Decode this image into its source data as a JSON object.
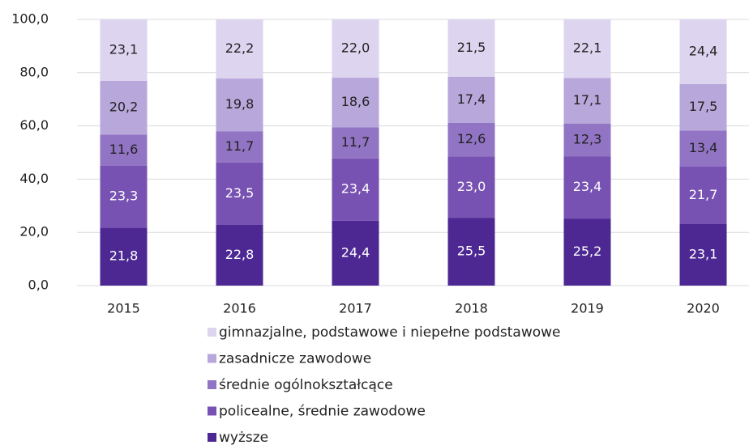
{
  "chart_data": {
    "type": "stacked_bar",
    "categories": [
      "2015",
      "2016",
      "2017",
      "2018",
      "2019",
      "2020"
    ],
    "ylim": [
      0,
      100
    ],
    "yticks": [
      {
        "value": 0,
        "label": "0,0"
      },
      {
        "value": 20,
        "label": "20,0"
      },
      {
        "value": 40,
        "label": "40,0"
      },
      {
        "value": 60,
        "label": "60,0"
      },
      {
        "value": 80,
        "label": "80,0"
      },
      {
        "value": 100,
        "label": "100,0"
      }
    ],
    "grid": true,
    "series": [
      {
        "name": "wyższe",
        "color": "#4d2893",
        "values": [
          21.8,
          22.8,
          24.4,
          25.5,
          25.2,
          23.1
        ],
        "value_labels": [
          "21,8",
          "22,8",
          "24,4",
          "25,5",
          "25,2",
          "23,1"
        ]
      },
      {
        "name": "policealne, średnie zawodowe",
        "color": "#7752b2",
        "values": [
          23.3,
          23.5,
          23.4,
          23.0,
          23.4,
          21.7
        ],
        "value_labels": [
          "23,3",
          "23,5",
          "23,4",
          "23,0",
          "23,4",
          "21,7"
        ]
      },
      {
        "name": "średnie ogólnokształcące",
        "color": "#9274c4",
        "values": [
          11.6,
          11.7,
          11.7,
          12.6,
          12.3,
          13.4
        ],
        "value_labels": [
          "11,6",
          "11,7",
          "11,7",
          "12,6",
          "12,3",
          "13,4"
        ]
      },
      {
        "name": "zasadnicze zawodowe",
        "color": "#b8a7db",
        "values": [
          20.2,
          19.8,
          18.6,
          17.4,
          17.1,
          17.5
        ],
        "value_labels": [
          "20,2",
          "19,8",
          "18,6",
          "17,4",
          "17,1",
          "17,5"
        ]
      },
      {
        "name": "gimnazjalne, podstawowe i niepełne podstawowe",
        "color": "#ddd4ef",
        "values": [
          23.1,
          22.2,
          22.0,
          21.5,
          22.1,
          24.4
        ],
        "value_labels": [
          "23,1",
          "22,2",
          "22,0",
          "21,5",
          "22,1",
          "24,4"
        ]
      }
    ],
    "label_colors": [
      "#ffffff",
      "#ffffff",
      "#222222",
      "#222222",
      "#222222"
    ]
  }
}
